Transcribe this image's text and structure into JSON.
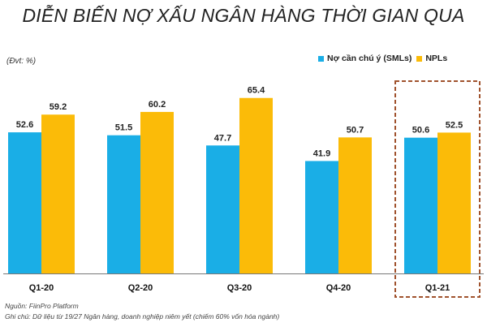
{
  "title": "DIỄN BIẾN NỢ XẤU NGÂN HÀNG THỜI GIAN QUA",
  "unit_label": "(Đvt: %)",
  "colors": {
    "sml": "#1aaee6",
    "npl": "#fbbb08",
    "highlight_border": "#a0522d"
  },
  "chart_data": {
    "type": "bar",
    "title": "DIỄN BIẾN NỢ XẤU NGÂN HÀNG THỜI GIAN QUA",
    "ylabel": "(Đvt: %)",
    "ylim": [
      0,
      75
    ],
    "grid": false,
    "legend_position": "top-right",
    "categories": [
      "Q1-20",
      "Q2-20",
      "Q3-20",
      "Q4-20",
      "Q1-21"
    ],
    "series": [
      {
        "name": "Nợ cần chú ý (SMLs)",
        "values": [
          52.6,
          51.5,
          47.7,
          41.9,
          50.6
        ]
      },
      {
        "name": "NPLs",
        "values": [
          59.2,
          60.2,
          65.4,
          50.7,
          52.5
        ]
      }
    ],
    "highlighted_category": "Q1-21"
  },
  "footer": {
    "source": "Nguồn: FiinPro Platform",
    "note": "Ghi chú: Dữ liệu từ 19/27 Ngân hàng, doanh nghiệp niêm yết (chiếm 60% vốn hóa ngành)"
  }
}
